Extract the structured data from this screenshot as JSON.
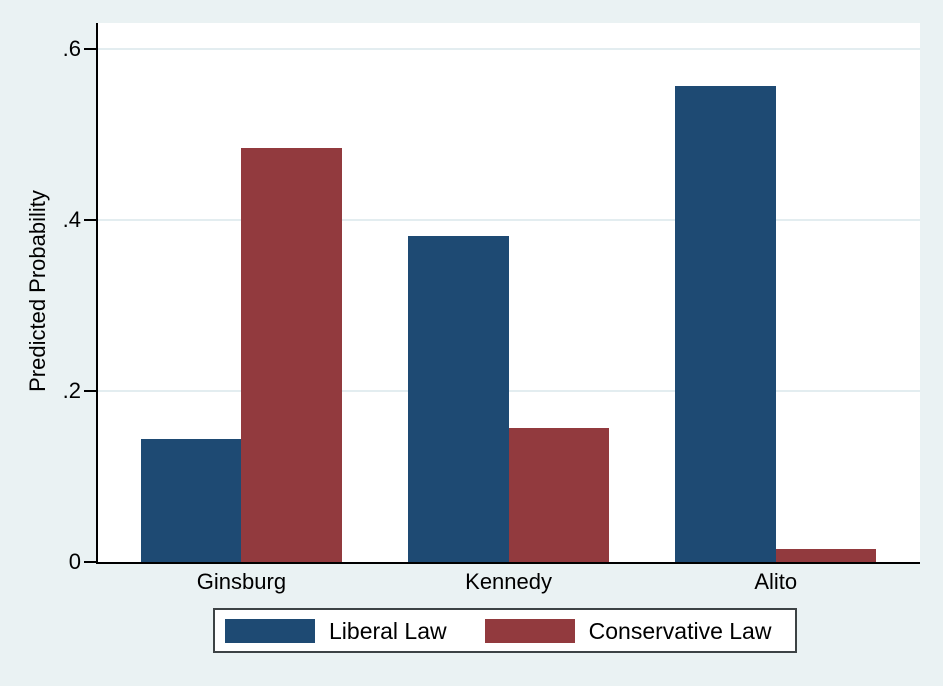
{
  "chart_data": {
    "type": "bar",
    "title": "",
    "ylabel": "Predicted Probability",
    "xlabel": "",
    "categories": [
      "Ginsburg",
      "Kennedy",
      "Alito"
    ],
    "series": [
      {
        "name": "Liberal Law",
        "color": "#1e4a73",
        "values": [
          0.144,
          0.381,
          0.556
        ]
      },
      {
        "name": "Conservative Law",
        "color": "#923a3e",
        "values": [
          0.484,
          0.157,
          0.015
        ]
      }
    ],
    "ytick_values": [
      0,
      0.2,
      0.4,
      0.6
    ],
    "ytick_labels": [
      "0",
      ".2",
      ".4",
      ".6"
    ],
    "ylim": [
      0,
      0.63
    ],
    "grid": true,
    "legend_position": "bottom-center",
    "colors": {
      "background": "#eaf2f3",
      "plot_background": "#ffffff",
      "gridline": "#e3edf0",
      "axis": "#000000",
      "text": "#000000",
      "legend_border": "#3d4345",
      "legend_background": "#ffffff"
    }
  }
}
